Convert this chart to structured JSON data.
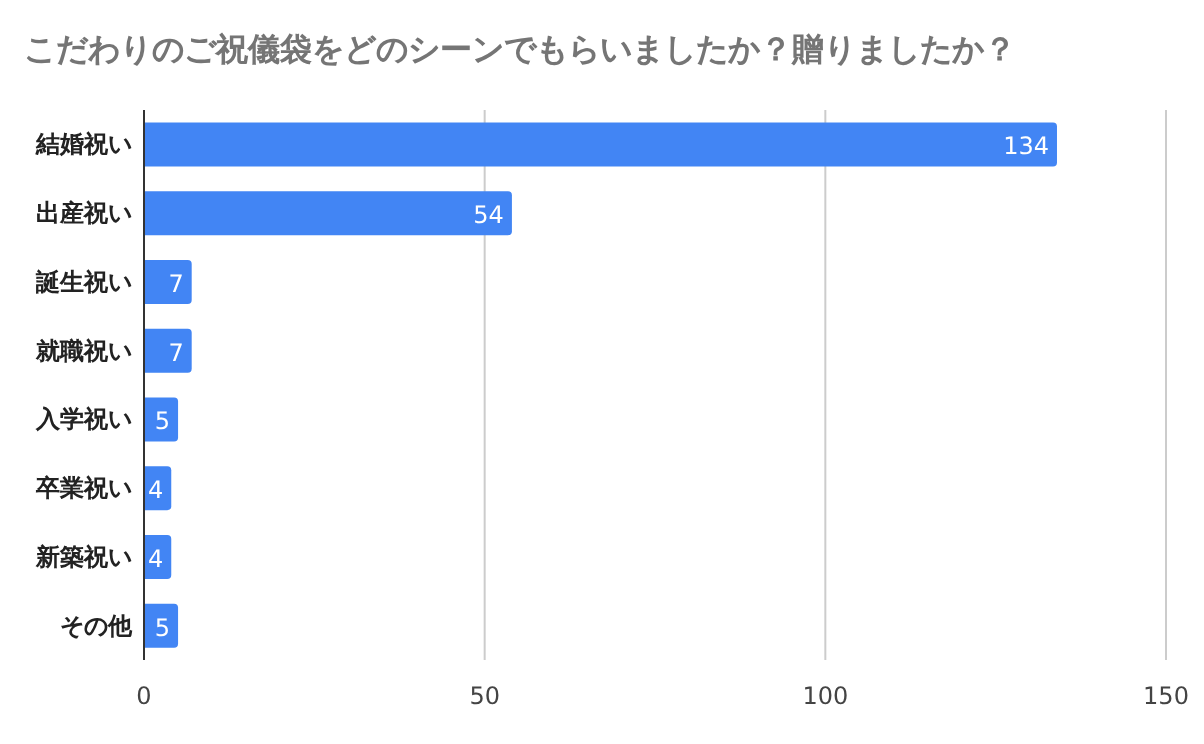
{
  "chart_data": {
    "type": "bar",
    "orientation": "horizontal",
    "title": "こだわりのご祝儀袋をどのシーンでもらいましたか？贈りましたか？",
    "categories": [
      "結婚祝い",
      "出産祝い",
      "誕生祝い",
      "就職祝い",
      "入学祝い",
      "卒業祝い",
      "新築祝い",
      "その他"
    ],
    "values": [
      134,
      54,
      7,
      7,
      5,
      4,
      4,
      5
    ],
    "color": "#4285f4",
    "xlim": [
      0,
      150
    ],
    "xticks": [
      0,
      50,
      100,
      150
    ],
    "grid": "x",
    "data_labels": true
  }
}
